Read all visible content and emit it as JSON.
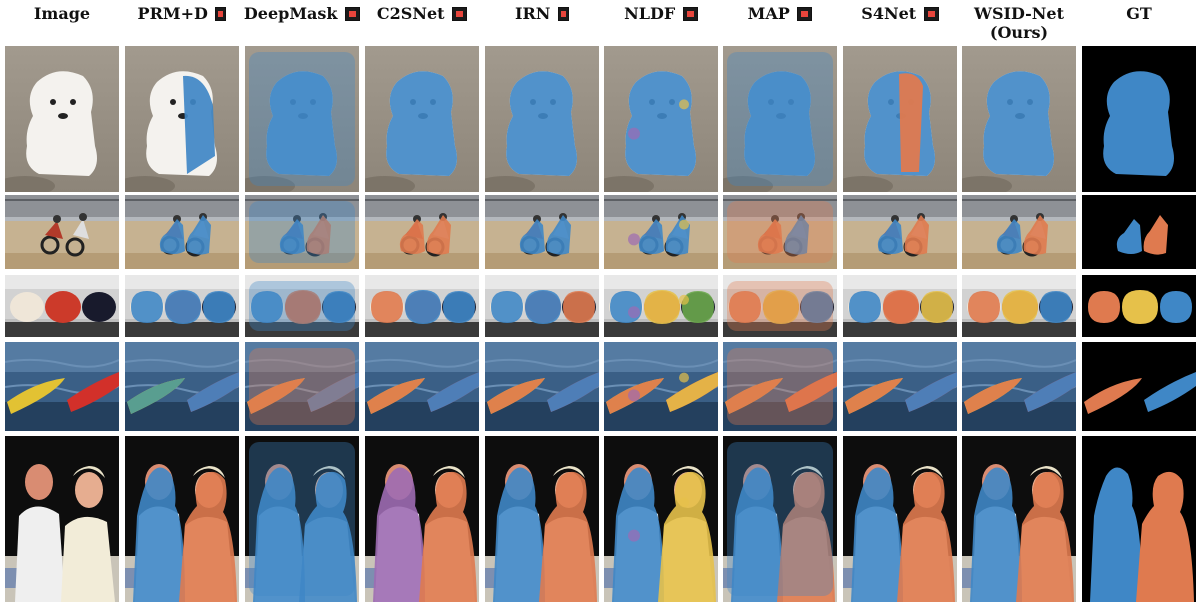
{
  "columns": [
    {
      "key": "image",
      "label": "Image",
      "flag": false
    },
    {
      "key": "prmd",
      "label": "PRM+D",
      "flag": true,
      "flag_narrow": true
    },
    {
      "key": "deepmask",
      "label": "DeepMask",
      "flag": true
    },
    {
      "key": "c2snet",
      "label": "C2SNet",
      "flag": true
    },
    {
      "key": "irn",
      "label": "IRN",
      "flag": true,
      "flag_narrow": true
    },
    {
      "key": "nldf",
      "label": "NLDF",
      "flag": true
    },
    {
      "key": "map",
      "label": "MAP",
      "flag": true
    },
    {
      "key": "s4net",
      "label": "S4Net",
      "flag": true
    },
    {
      "key": "wsid",
      "label": "WSID-Net",
      "label2": "(Ours)",
      "flag": false
    },
    {
      "key": "gt",
      "label": "GT",
      "flag": false
    }
  ],
  "rows": [
    {
      "scene": "puppy"
    },
    {
      "scene": "motorbikes"
    },
    {
      "scene": "pitchers"
    },
    {
      "scene": "kayaks"
    },
    {
      "scene": "couple"
    }
  ],
  "colors": {
    "blue": "#3f87c6",
    "orange": "#df7a4f",
    "yellow": "#e6c14a",
    "green": "#6ca84d",
    "purple": "#9d6bb3",
    "background_gt": "#000000"
  }
}
